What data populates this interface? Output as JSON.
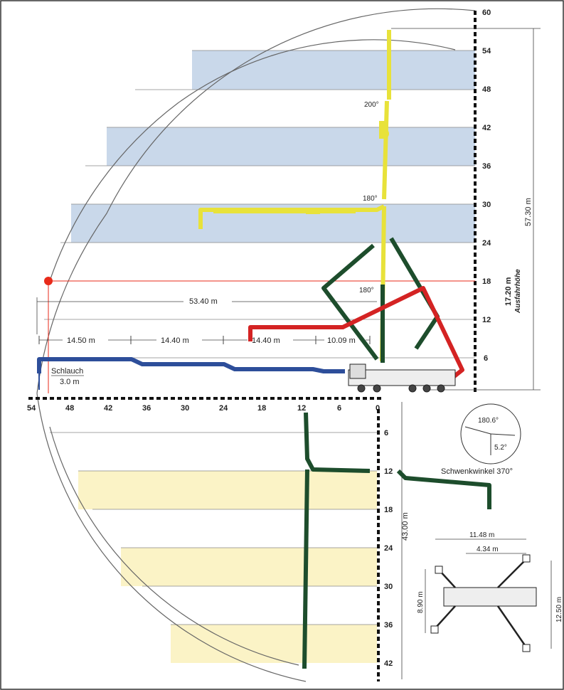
{
  "upper_axis_ticks": [
    "60",
    "54",
    "48",
    "42",
    "36",
    "30",
    "24",
    "18",
    "12",
    "6"
  ],
  "horizontal_axis_ticks": [
    "54",
    "48",
    "42",
    "36",
    "30",
    "24",
    "18",
    "12",
    "6",
    "0"
  ],
  "lower_axis_ticks": [
    "6",
    "12",
    "18",
    "24",
    "30",
    "36",
    "42"
  ],
  "dimensions": {
    "total_height": "57.30 m",
    "working_height": "17.20 m",
    "working_height_label": "Ausfahrhöhe",
    "reach": "53.40 m",
    "section_1": "14.50 m",
    "section_2": "14.40 m",
    "section_3": "14.40 m",
    "section_4": "10.09 m",
    "hose_label": "Schlauch",
    "hose_length": "3.0 m",
    "depth": "43.00 m"
  },
  "angles": {
    "upper_fold": "200°",
    "mid_fold": "180°",
    "red_fold": "180°"
  },
  "slewing": {
    "angle_a": "180.6°",
    "angle_b": "5.2°",
    "label": "Schwenkwinkel 370°"
  },
  "outriggers": {
    "front_width": "11.48 m",
    "rear_offset": "4.34 m",
    "rear_width": "8.90 m",
    "length": "12.50 m"
  },
  "colors": {
    "boom_yellow": "#e8e23a",
    "boom_red": "#d42323",
    "boom_green": "#1d4d2c",
    "boom_blue": "#2d4e9a",
    "band_blue": "#c9d8ea",
    "band_yellow": "#fbf3c6",
    "marker": "#e82a1a"
  }
}
